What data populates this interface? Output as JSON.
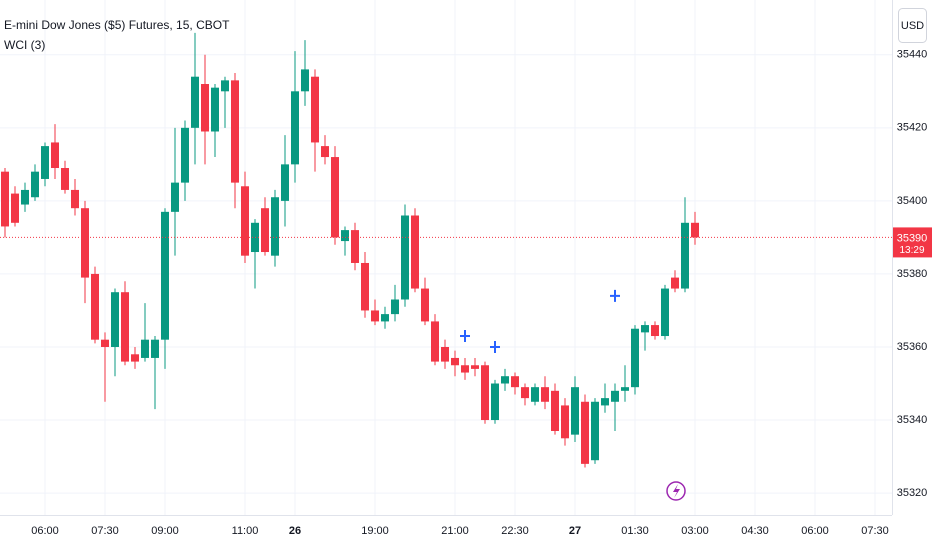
{
  "chart_data": {
    "type": "candlestick",
    "title": "E-mini Dow Jones ($5) Futures, 15, CBOT",
    "indicator": "WCI (3)",
    "currency": "USD",
    "countdown": "13:29",
    "up_color": "#089981",
    "down_color": "#f23645",
    "open": [
      35408,
      35402,
      35399,
      35401,
      35406,
      35416,
      35409,
      35403,
      35398,
      35380,
      35362,
      35360,
      35375,
      35358,
      35357,
      35357,
      35362,
      35397,
      35405,
      35420,
      35432,
      35419,
      35430,
      35433,
      35404,
      35386,
      35398,
      35385,
      35400,
      35410,
      35430,
      35434,
      35415,
      35412,
      35389,
      35392,
      35383,
      35370,
      35367,
      35369,
      35373,
      35396,
      35376,
      35367,
      35360,
      35357,
      35355,
      35355,
      35355,
      35340,
      35350,
      35352,
      35349,
      35345,
      35349,
      35348,
      35344,
      35336,
      35345,
      35329,
      35344,
      35345,
      35348,
      35349,
      35364,
      35366,
      35363,
      35379,
      35376,
      35394
    ],
    "high": [
      35409,
      35404,
      35405,
      35410,
      35416,
      35421,
      35411,
      35406,
      35400,
      35382,
      35364,
      35376,
      35378,
      35360,
      35372,
      35363,
      35398,
      35420,
      35422,
      35446,
      35440,
      35432,
      35434,
      35435,
      35408,
      35395,
      35401,
      35403,
      35418,
      35441,
      35444,
      35436,
      35418,
      35415,
      35393,
      35394,
      35386,
      35373,
      35371,
      35377,
      35399,
      35398,
      35379,
      35369,
      35362,
      35359,
      35357,
      35357,
      35356,
      35351,
      35354,
      35353,
      35350,
      35350,
      35352,
      35350,
      35346,
      35352,
      35347,
      35346,
      35350,
      35350,
      35355,
      35366,
      35367,
      35367,
      35377,
      35381,
      35401,
      35397
    ],
    "low": [
      35390,
      35393,
      35397,
      35400,
      35404,
      35406,
      35402,
      35396,
      35372,
      35361,
      35345,
      35352,
      35355,
      35354,
      35356,
      35343,
      35354,
      35385,
      35400,
      35410,
      35410,
      35412,
      35420,
      35398,
      35383,
      35376,
      35385,
      35382,
      35393,
      35405,
      35426,
      35408,
      35410,
      35388,
      35385,
      35381,
      35368,
      35366,
      35365,
      35367,
      35371,
      35375,
      35366,
      35355,
      35354,
      35352,
      35351,
      35352,
      35339,
      35339,
      35348,
      35347,
      35344,
      35344,
      35343,
      35336,
      35333,
      35334,
      35327,
      35328,
      35342,
      35337,
      35345,
      35347,
      35359,
      35362,
      35362,
      35375,
      35375,
      35388
    ],
    "close": [
      35393,
      35394,
      35403,
      35408,
      35415,
      35409,
      35403,
      35398,
      35379,
      35362,
      35360,
      35375,
      35356,
      35356,
      35362,
      35362,
      35397,
      35405,
      35420,
      35434,
      35419,
      35431,
      35433,
      35405,
      35385,
      35394,
      35386,
      35401,
      35410,
      35430,
      35436,
      35416,
      35412,
      35390,
      35392,
      35383,
      35370,
      35367,
      35369,
      35373,
      35396,
      35376,
      35367,
      35356,
      35356,
      35355,
      35353,
      35354,
      35340,
      35350,
      35352,
      35349,
      35346,
      35349,
      35345,
      35337,
      35335,
      35349,
      35328,
      35345,
      35346,
      35348,
      35349,
      35365,
      35366,
      35363,
      35376,
      35376,
      35394,
      35390
    ],
    "markers": {
      "x": [
        46,
        49,
        61
      ],
      "values": [
        35363,
        35360,
        35374
      ],
      "color": "#2962ff"
    },
    "xlim": [
      -0.5,
      88.7
    ],
    "ylim": [
      35314,
      35455
    ],
    "yticks": [
      35320,
      35340,
      35360,
      35380,
      35400,
      35420,
      35440
    ],
    "xticks": [
      {
        "value": 4,
        "label": "06:00"
      },
      {
        "value": 10,
        "label": "07:30"
      },
      {
        "value": 16,
        "label": "09:00"
      },
      {
        "value": 24,
        "label": "11:00"
      },
      {
        "value": 29,
        "label": "26"
      },
      {
        "value": 37,
        "label": "19:00"
      },
      {
        "value": 45,
        "label": "21:00"
      },
      {
        "value": 51,
        "label": "22:30"
      },
      {
        "value": 57,
        "label": "27"
      },
      {
        "value": 63,
        "label": "01:30"
      },
      {
        "value": 69,
        "label": "03:00"
      },
      {
        "value": 75,
        "label": "04:30"
      },
      {
        "value": 81,
        "label": "06:00"
      },
      {
        "value": 87,
        "label": "07:30"
      }
    ],
    "grid": true
  }
}
